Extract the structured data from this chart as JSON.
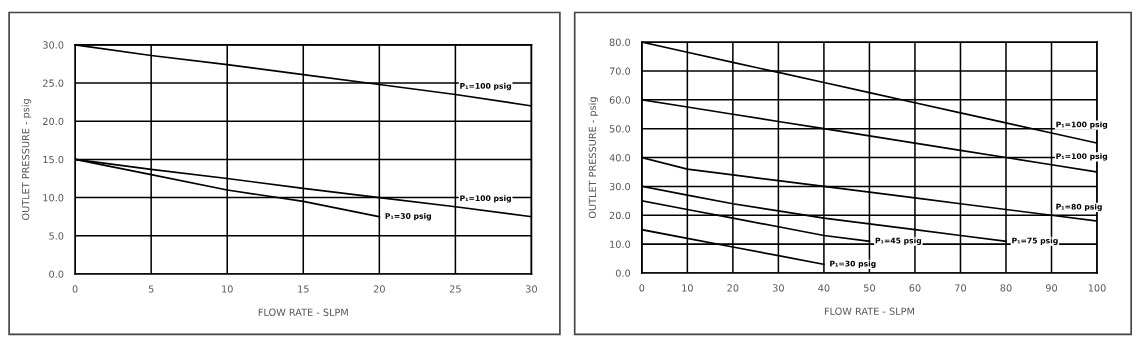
{
  "chart_data": [
    {
      "type": "line",
      "xlabel": "FLOW RATE - SLPM",
      "ylabel": "OUTLET PRESSURE - psig",
      "xlim": [
        0,
        30
      ],
      "ylim": [
        0,
        30
      ],
      "xticks": [
        0,
        5,
        10,
        15,
        20,
        25,
        30
      ],
      "yticks": [
        {
          "value": 0,
          "label": "0.0"
        },
        {
          "value": 5,
          "label": "5.0"
        },
        {
          "value": 10,
          "label": "10.0"
        },
        {
          "value": 15,
          "label": "15.0"
        },
        {
          "value": 20,
          "label": "20.0"
        },
        {
          "value": 25,
          "label": "25.0"
        },
        {
          "value": 30,
          "label": "30.0"
        }
      ],
      "grid": true,
      "legend": false,
      "marker": "none",
      "line_style": "solid",
      "series": [
        {
          "name": "P₁=100 psig",
          "color": "#000000",
          "x": [
            0,
            5,
            10,
            15,
            20,
            25,
            30
          ],
          "values": [
            30,
            28.6,
            27.4,
            26.1,
            24.8,
            23.5,
            22.0
          ]
        },
        {
          "name": "P₁=100 psig",
          "color": "#000000",
          "x": [
            0,
            5,
            10,
            15,
            20,
            25,
            30
          ],
          "values": [
            15,
            13.7,
            12.5,
            11.2,
            10.0,
            8.8,
            7.5
          ]
        },
        {
          "name": "P₁=30 psig",
          "color": "#000000",
          "x": [
            0,
            5,
            10,
            15,
            20
          ],
          "values": [
            15,
            13.0,
            11.0,
            9.5,
            7.5
          ]
        }
      ]
    },
    {
      "type": "line",
      "xlabel": "FLOW RATE - SLPM",
      "ylabel": "OUTLET PRESSURE - psig",
      "xlim": [
        0,
        100
      ],
      "ylim": [
        0,
        80
      ],
      "xticks": [
        0,
        10,
        20,
        30,
        40,
        50,
        60,
        70,
        80,
        90,
        100
      ],
      "yticks": [
        {
          "value": 0,
          "label": "0.0"
        },
        {
          "value": 10,
          "label": "10.0"
        },
        {
          "value": 20,
          "label": "20.0"
        },
        {
          "value": 30,
          "label": "30.0"
        },
        {
          "value": 40,
          "label": "40.0"
        },
        {
          "value": 50,
          "label": "50.0"
        },
        {
          "value": 60,
          "label": "60.0"
        },
        {
          "value": 70,
          "label": "70.0"
        },
        {
          "value": 80,
          "label": "80.0"
        }
      ],
      "grid": true,
      "legend": false,
      "marker": "none",
      "line_style": "solid",
      "series": [
        {
          "name": "P₁=100 psig",
          "color": "#000000",
          "x": [
            0,
            10,
            20,
            30,
            40,
            50,
            60,
            70,
            80,
            90,
            100
          ],
          "values": [
            80,
            76.5,
            73,
            69.5,
            66,
            62.5,
            59,
            55.5,
            52,
            48.5,
            45
          ]
        },
        {
          "name": "P₁=100 psig",
          "color": "#000000",
          "x": [
            0,
            10,
            20,
            30,
            40,
            50,
            60,
            70,
            80,
            90,
            100
          ],
          "values": [
            60,
            57.5,
            55,
            52.5,
            50,
            47.5,
            45,
            42.5,
            40,
            37.5,
            35
          ]
        },
        {
          "name": "P₁=80 psig",
          "color": "#000000",
          "x": [
            0,
            10,
            20,
            30,
            40,
            50,
            60,
            70,
            80,
            90,
            100
          ],
          "values": [
            40,
            36,
            34,
            32,
            30,
            28,
            26,
            24,
            22,
            20,
            18
          ]
        },
        {
          "name": "P₁=75 psig",
          "color": "#000000",
          "x": [
            0,
            10,
            20,
            30,
            40,
            50,
            60,
            70,
            80
          ],
          "values": [
            30,
            27,
            24,
            21.5,
            19,
            17,
            15,
            13,
            11
          ]
        },
        {
          "name": "P₁=45 psig",
          "color": "#000000",
          "x": [
            0,
            10,
            20,
            30,
            40,
            50
          ],
          "values": [
            25,
            22,
            19,
            16,
            13,
            11
          ]
        },
        {
          "name": "P₁=30 psig",
          "color": "#000000",
          "x": [
            0,
            10,
            20,
            30,
            40
          ],
          "values": [
            15,
            12,
            9,
            6,
            3
          ]
        }
      ]
    }
  ]
}
